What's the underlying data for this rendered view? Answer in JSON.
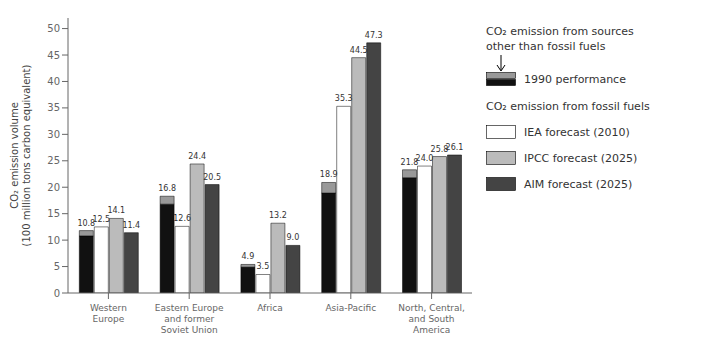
{
  "chart_data": {
    "type": "bar",
    "categories": [
      "Western\nEurope",
      "Eastern Europe\nand former\nSoviet Union",
      "Africa",
      "Asia-Pacific",
      "North, Central,\nand South\nAmerica"
    ],
    "series": [
      {
        "name": "1990 performance",
        "color": "#111111",
        "values": [
          10.8,
          16.8,
          4.9,
          18.9,
          21.8
        ],
        "stacked": true,
        "data_labels": true
      },
      {
        "name": "CO₂ emission from sources\nother than fossil fuels",
        "color": "#999999",
        "values": [
          1.0,
          1.5,
          0.5,
          2.0,
          1.5
        ],
        "stacked": true
      },
      {
        "name": "IEA forecast (2010)",
        "color": "#ffffff",
        "values": [
          12.5,
          12.6,
          3.5,
          35.3,
          24.0
        ],
        "value_labels": [
          "12.5",
          "12.6",
          "3.5",
          "35.3",
          "24.0"
        ],
        "data_labels": true
      },
      {
        "name": "IPCC forecast (2025)",
        "color": "#bbbbbb",
        "values": [
          14.1,
          24.4,
          13.2,
          44.5,
          25.8
        ],
        "data_labels": true
      },
      {
        "name": "AIM forecast (2025)",
        "color": "#444444",
        "values": [
          11.4,
          20.5,
          9.0,
          47.3,
          26.1
        ],
        "value_labels": [
          "11.4",
          "20.5",
          "9.0",
          "47.3",
          "26.1"
        ],
        "data_labels": true
      }
    ],
    "ylabel": "CO₂ emission volume\n(100 million tons carbon equivalent)",
    "ylim": [
      0,
      52
    ],
    "yticks": [
      0,
      5,
      10,
      15,
      20,
      25,
      30,
      35,
      40,
      45,
      50
    ],
    "annotations": [
      "CO₂ emission from fossil fuels"
    ],
    "grid": false
  }
}
